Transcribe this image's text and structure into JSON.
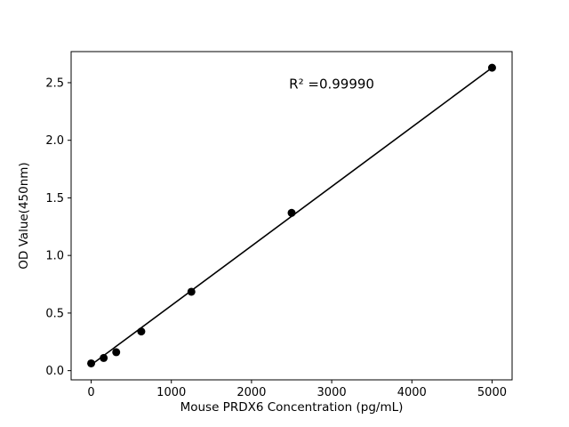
{
  "chart_data": {
    "type": "scatter",
    "title": "",
    "xlabel": "Mouse PRDX6 Concentration (pg/mL)",
    "ylabel": "OD Value(450nm)",
    "x": [
      0,
      156.25,
      312.5,
      625,
      1250,
      2500,
      5000
    ],
    "y": [
      0.063,
      0.11,
      0.16,
      0.34,
      0.685,
      1.37,
      2.63
    ],
    "fit_line": {
      "x": [
        0,
        5000
      ],
      "y": [
        0.05,
        2.63
      ]
    },
    "annotation": {
      "text": "R² =0.99990",
      "x": 3000,
      "y": 2.45
    },
    "xlim": [
      -250,
      5250
    ],
    "ylim": [
      -0.08,
      2.77
    ],
    "xticks": [
      0,
      1000,
      2000,
      3000,
      4000,
      5000
    ],
    "xtick_labels": [
      "0",
      "1000",
      "2000",
      "3000",
      "4000",
      "5000"
    ],
    "yticks": [
      0.0,
      0.5,
      1.0,
      1.5,
      2.0,
      2.5
    ],
    "ytick_labels": [
      "0.0",
      "0.5",
      "1.0",
      "1.5",
      "2.0",
      "2.5"
    ],
    "grid": false,
    "legend": null,
    "marker_color": "#000000",
    "line_color": "#000000",
    "axis_color": "#000000",
    "background": "#ffffff"
  }
}
